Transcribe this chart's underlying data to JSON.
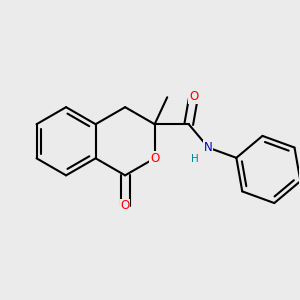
{
  "bg_color": "#ebebeb",
  "bond_color": "#000000",
  "bond_width": 1.5,
  "atom_colors": {
    "O": "#ff0000",
    "N": "#0000cc",
    "H": "#008888"
  },
  "font_size": 8.5,
  "fig_width": 3.0,
  "fig_height": 3.0,
  "dpi": 100,
  "xlim": [
    -0.75,
    0.95
  ],
  "ylim": [
    -0.52,
    0.58
  ]
}
